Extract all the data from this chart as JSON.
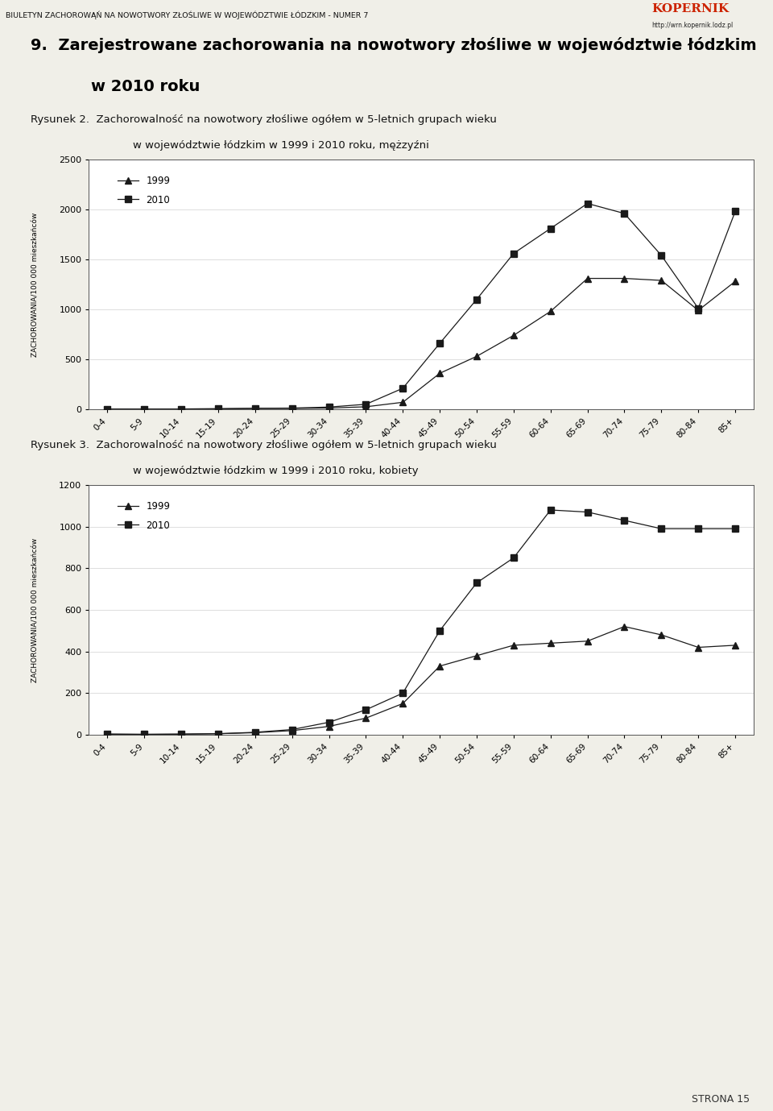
{
  "age_groups": [
    "0-4",
    "5-9",
    "10-14",
    "15-19",
    "20-24",
    "25-29",
    "30-34",
    "35-39",
    "40-44",
    "45-49",
    "50-54",
    "55-59",
    "60-64",
    "65-69",
    "70-74",
    "75-79",
    "80-84",
    "85+"
  ],
  "men_1999": [
    3,
    2,
    3,
    5,
    8,
    8,
    12,
    25,
    70,
    360,
    530,
    740,
    980,
    1310,
    1310,
    1290,
    990,
    1280
  ],
  "men_2010": [
    3,
    2,
    3,
    5,
    10,
    12,
    22,
    50,
    210,
    660,
    1100,
    1560,
    1810,
    2060,
    1960,
    1540,
    1010,
    1980
  ],
  "women_1999": [
    3,
    2,
    3,
    5,
    10,
    20,
    40,
    80,
    150,
    330,
    380,
    430,
    440,
    450,
    520,
    480,
    420,
    430
  ],
  "women_2010": [
    3,
    2,
    3,
    5,
    12,
    25,
    60,
    120,
    200,
    500,
    730,
    850,
    1080,
    1070,
    1030,
    990,
    990,
    990
  ],
  "page_bg": "#f0efe8",
  "chart_bg": "#ffffff",
  "header_bg": "#d8d8d0",
  "header_text": "BIULETYN ZACHOROWĄŃ NA NOWOTWORY ZŁOŚLIWE W WOJEWÓDZTWIE ŁÓDZKIM - NUMER 7",
  "ylabel": "ZACHOROWANIA/100 000 mieszkańców",
  "legend_1999": "1999",
  "legend_2010": "2010",
  "men_ylim": [
    0,
    2500
  ],
  "men_yticks": [
    0,
    500,
    1000,
    1500,
    2000,
    2500
  ],
  "women_ylim": [
    0,
    1200
  ],
  "women_yticks": [
    0,
    200,
    400,
    600,
    800,
    1000,
    1200
  ],
  "line_color": "#1a1a1a",
  "footer_text": "STRONA 15"
}
